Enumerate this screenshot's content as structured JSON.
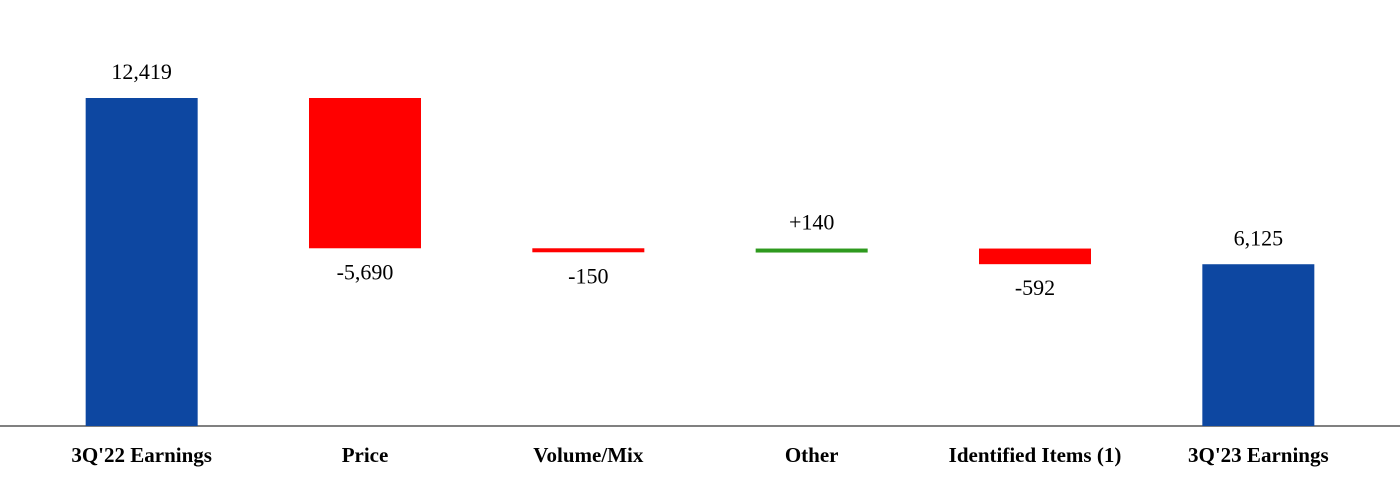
{
  "chart_data": {
    "type": "waterfall",
    "categories": [
      "3Q'22 Earnings",
      "Price",
      "Volume/Mix",
      "Other",
      "Identified Items (1)",
      "3Q'23 Earnings"
    ],
    "values": [
      12419,
      -5690,
      -150,
      140,
      -592,
      6125
    ],
    "value_labels": [
      "12,419",
      "-5,690",
      "-150",
      "+140",
      "-592",
      "6,125"
    ],
    "colors": [
      "#0d47a1",
      "#ff0000",
      "#ff0000",
      "#2e9a1e",
      "#ff0000",
      "#0d47a1"
    ]
  }
}
